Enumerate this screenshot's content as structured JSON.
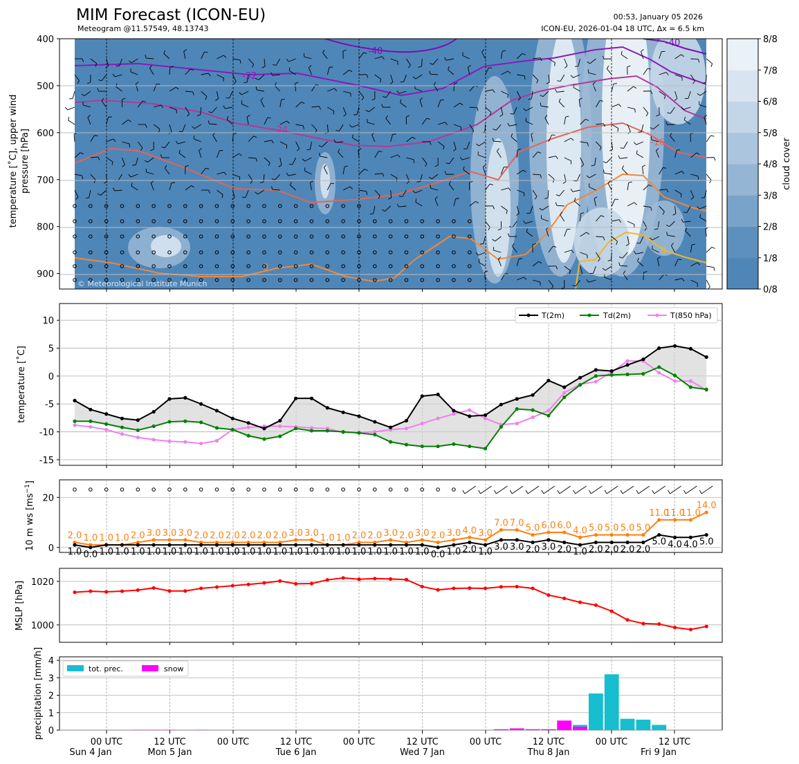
{
  "header": {
    "title": "MIM Forecast (ICON-EU)",
    "subtitle": "Meteogram @11.57549, 48.13743",
    "time_info": "00:53, January 05 2026",
    "model_info": "ICON-EU, 2026-01-04 18 UTC, Δx = 6.5 km"
  },
  "copyright": "© Meteorological Institute Munich",
  "colors": {
    "t2m": "#000000",
    "td2m": "#008000",
    "t850": "#ee82ee",
    "gust": "#ff7f0e",
    "wind": "#000000",
    "mslp": "#ff0000",
    "tot_prec": "#17becf",
    "snow": "#ff00ff",
    "cloud_base": "#4f86b8"
  },
  "x_axis": {
    "ticks": [
      "00 UTC",
      "12 UTC",
      "00 UTC",
      "12 UTC",
      "00 UTC",
      "12 UTC",
      "00 UTC",
      "12 UTC",
      "00 UTC",
      "12 UTC"
    ],
    "days": [
      "Sun 4 Jan",
      "Mon 5 Jan",
      "Tue 6 Jan",
      "Wed 7 Jan",
      "Thu 8 Jan",
      "Fri 9 Jan"
    ]
  },
  "chart_data": [
    {
      "type": "heatmap",
      "name": "upper-air",
      "ylabel": "temperature [˚C], upper wind\npressure [hPa]",
      "yticks": [
        400,
        500,
        600,
        700,
        800,
        900
      ],
      "ylim": [
        933,
        400
      ],
      "colorbar": {
        "label": "cloud cover",
        "ticks": [
          "0/8",
          "1/8",
          "2/8",
          "3/8",
          "4/8",
          "5/8",
          "6/8",
          "7/8",
          "8/8"
        ]
      },
      "contour_labels": [
        "-40",
        "-32",
        "-24",
        "-16",
        "-8",
        "0",
        "-40",
        "-16"
      ]
    },
    {
      "type": "line",
      "name": "temperature",
      "ylabel": "temperature [˚C]",
      "ylim": [
        -16,
        13
      ],
      "yticks": [
        10,
        5,
        0,
        -5,
        -10,
        -15
      ],
      "legend": [
        "T(2m)",
        "Td(2m)",
        "T(850 hPa)"
      ],
      "series": [
        {
          "name": "T(2m)",
          "values": [
            -4.4,
            -6,
            -6.8,
            -7.6,
            -7.9,
            -6.4,
            -4.1,
            -3.9,
            -5,
            -6.2,
            -7.6,
            -8.4,
            -9.4,
            -8,
            -4,
            -4,
            -5.7,
            -6.5,
            -7.2,
            -8.2,
            -9.2,
            -8,
            -3.6,
            -3.3,
            -6.2,
            -7.2,
            -7,
            -5.1,
            -4.1,
            -3.4,
            -0.8,
            -2,
            -0.3,
            1.1,
            0.9,
            2,
            3,
            5,
            5.4,
            4.9,
            3.4
          ]
        },
        {
          "name": "Td(2m)",
          "values": [
            -8.1,
            -8.1,
            -8.6,
            -9.2,
            -9.7,
            -9,
            -8.2,
            -8.1,
            -8.3,
            -9.3,
            -9.6,
            -10.7,
            -11.3,
            -10.8,
            -9.4,
            -9.8,
            -9.8,
            -10,
            -10.2,
            -10.5,
            -11.8,
            -12.3,
            -12.6,
            -12.6,
            -12.2,
            -12.6,
            -13,
            -9.1,
            -5.9,
            -6.1,
            -7.1,
            -3.8,
            -1.6,
            0,
            0.2,
            0.3,
            0.4,
            1.6,
            0.1,
            -2.0,
            -2.4
          ]
        },
        {
          "name": "T(850 hPa)",
          "values": [
            -8.8,
            -9.1,
            -9.6,
            -10.4,
            -11.0,
            -11.4,
            -11.7,
            -11.8,
            -12.1,
            -11.6,
            -9.6,
            -9.2,
            -9.0,
            -9.0,
            -9.1,
            -9.3,
            -9.4,
            -10.1,
            -10.1,
            -10.0,
            -9.6,
            -9.4,
            -8.5,
            -7.6,
            -6.8,
            -6.1,
            -7.6,
            -8.7,
            -8.5,
            -7.4,
            -6.2,
            -3.0,
            -1.5,
            -1.0,
            0.7,
            2.7,
            2.7,
            0.6,
            -0.9,
            -0.9,
            -2.5
          ]
        }
      ]
    },
    {
      "type": "line",
      "name": "wind",
      "ylabel": "10 m ws [ms⁻¹]",
      "ylim": [
        -2,
        27
      ],
      "yticks": [
        0,
        20
      ],
      "series": [
        {
          "name": "gust",
          "values": [
            2.0,
            1.0,
            1.0,
            1.0,
            2.0,
            3.0,
            3.0,
            3.0,
            2.0,
            2.0,
            2.0,
            2.0,
            2.0,
            2.0,
            3.0,
            3.0,
            1.0,
            1.0,
            2.0,
            2.0,
            3.0,
            2.0,
            3.0,
            2.0,
            3.0,
            4.0,
            3.0,
            7.0,
            7.0,
            5.0,
            6.0,
            6.0,
            4.0,
            5.0,
            5.0,
            5.0,
            5.0,
            11.0,
            11.0,
            11.0,
            14.0
          ]
        },
        {
          "name": "wind",
          "values": [
            1.0,
            0.0,
            1.0,
            1.0,
            1.0,
            1.0,
            1.0,
            1.0,
            1.0,
            1.0,
            1.0,
            1.0,
            1.0,
            1.0,
            1.0,
            1.0,
            1.0,
            1.0,
            1.0,
            1.0,
            1.0,
            1.0,
            1.0,
            0.0,
            1.0,
            2.0,
            1.0,
            3.0,
            3.0,
            2.0,
            3.0,
            2.0,
            1.0,
            2.0,
            2.0,
            2.0,
            2.0,
            5.0,
            4.0,
            4.0,
            5.0
          ]
        }
      ],
      "gust_labels": [
        "2.0",
        "1.0",
        "1.0",
        "1.0",
        "2.0",
        "3.0",
        "3.0",
        "3.0",
        "2.0",
        "2.0",
        "2.0",
        "2.0",
        "2.0",
        "2.0",
        "3.0",
        "3.0",
        "1.0",
        "1.0",
        "2.0",
        "2.0",
        "3.0",
        "2.0",
        "3.0",
        "2.0",
        "3.0",
        "4.0",
        "3.0",
        "7.0",
        "7.0",
        "5.0",
        "6.0",
        "6.0",
        "4.0",
        "5.0",
        "5.0",
        "5.0",
        "5.0",
        "11.0",
        "11.0",
        "11.0",
        "14.0"
      ],
      "wind_labels": [
        "1.0",
        "0.0",
        "1.0",
        "1.0",
        "1.0",
        "1.0",
        "1.0",
        "1.0",
        "1.0",
        "1.0",
        "1.0",
        "1.0",
        "1.0",
        "1.0",
        "1.0",
        "1.0",
        "1.0",
        "1.0",
        "1.0",
        "1.0",
        "1.0",
        "1.0",
        "1.0",
        "0.0",
        "1.0",
        "2.0",
        "1.0",
        "3.0",
        "3.0",
        "2.0",
        "3.0",
        "2.0",
        "1.0",
        "2.0",
        "2.0",
        "2.0",
        "2.0",
        "5.0",
        "4.0",
        "4.0",
        "5.0"
      ]
    },
    {
      "type": "line",
      "name": "mslp",
      "ylabel": "MSLP [hPa]",
      "ylim": [
        992,
        1026
      ],
      "yticks": [
        1020,
        1000
      ],
      "series": [
        {
          "name": "MSLP",
          "values": [
            1015,
            1015.5,
            1015.2,
            1015.5,
            1016,
            1017,
            1015.6,
            1015.6,
            1016.8,
            1017.4,
            1018,
            1018.6,
            1019.3,
            1020.2,
            1018.9,
            1019,
            1020.7,
            1021.6,
            1021,
            1021.3,
            1021.1,
            1020.8,
            1017.6,
            1016.1,
            1016.8,
            1016.9,
            1016.8,
            1017.5,
            1017.6,
            1016.8,
            1013.7,
            1012.2,
            1010.4,
            1009.1,
            1006.3,
            1002.3,
            1000.6,
            1000.4,
            998.8,
            997.9,
            999.3
          ]
        }
      ]
    },
    {
      "type": "bar",
      "name": "precipitation",
      "ylabel": "precipitation [mm/h]",
      "ylim": [
        0,
        4.2
      ],
      "yticks": [
        0,
        1,
        2,
        3,
        4
      ],
      "legend": [
        "tot. prec.",
        "snow"
      ],
      "tot_prec": [
        0,
        0,
        0,
        0,
        0,
        0,
        0,
        0,
        0,
        0,
        0,
        0,
        0,
        0,
        0,
        0,
        0,
        0,
        0,
        0,
        0,
        0,
        0,
        0,
        0,
        0,
        0,
        0,
        0,
        0,
        0,
        0,
        0.3,
        2.1,
        3.2,
        0.65,
        0.6,
        0.3,
        0,
        0,
        0
      ],
      "snow": [
        0,
        0,
        0,
        0,
        0.02,
        0.02,
        0.02,
        0,
        0.02,
        0,
        0,
        0,
        0,
        0,
        0,
        0,
        0,
        0,
        0,
        0,
        0,
        0,
        0,
        0,
        0,
        0,
        0,
        0.05,
        0.1,
        0.05,
        0.05,
        0.55,
        0.2,
        0,
        0,
        0,
        0,
        0,
        0,
        0,
        0
      ]
    }
  ]
}
